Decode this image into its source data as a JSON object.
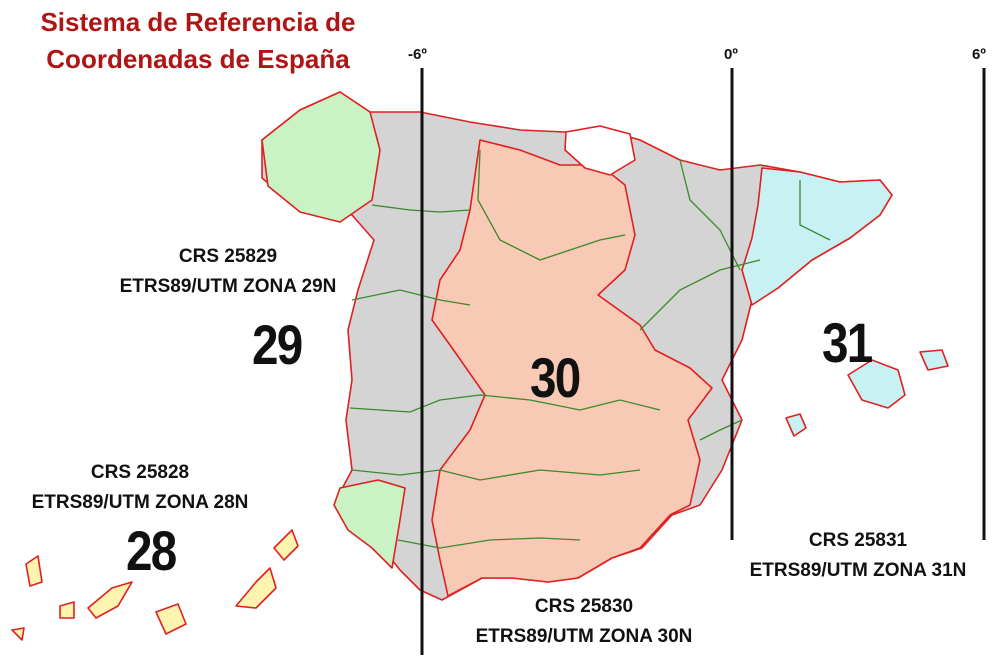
{
  "title": "Sistema de Referencia de\nCoordenadas de España",
  "meridians": {
    "m_w6": "-6º",
    "m_0": "0º",
    "m_e6": "6º"
  },
  "zones": {
    "z28": {
      "number": "28",
      "crs": "CRS 25828",
      "name": "ETRS89/UTM ZONA 28N",
      "fill": "#fff3b0"
    },
    "z29": {
      "number": "29",
      "crs": "CRS 25829",
      "name": "ETRS89/UTM ZONA 29N",
      "fill": "#c9f2c5"
    },
    "z30": {
      "number": "30",
      "crs": "CRS 25830",
      "name": "ETRS89/UTM ZONA 30N",
      "fill": "#f8c9b4"
    },
    "z31": {
      "number": "31",
      "crs": "CRS 25831",
      "name": "ETRS89/UTM ZONA 31N",
      "fill": "#c8f1f4"
    }
  },
  "colors": {
    "title": "#b01515",
    "province_border": "#e02020",
    "region_border": "#3a8a2a",
    "land_grey": "#d4d4d4"
  }
}
